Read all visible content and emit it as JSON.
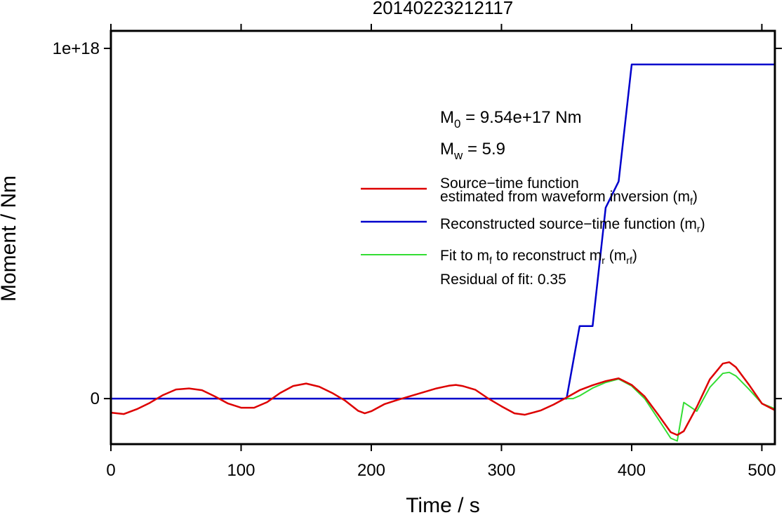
{
  "chart_data": {
    "type": "line",
    "title": "20140223212117",
    "xlabel": "Time / s",
    "ylabel": "Moment / Nm",
    "xlim": [
      0,
      510
    ],
    "ylim": [
      -1.3e+17,
      1.05e+18
    ],
    "x_ticks": [
      0,
      100,
      200,
      300,
      400,
      500
    ],
    "x_tick_labels": [
      "0",
      "100",
      "200",
      "300",
      "400",
      "500"
    ],
    "y_ticks": [
      0,
      1e+18
    ],
    "y_tick_labels": [
      "0",
      "1e+18"
    ],
    "grid": false,
    "legend_position": "right",
    "annotations": {
      "m0": {
        "main": "M",
        "sub": "0",
        "rest": " = 9.54e+17 Nm"
      },
      "mw": {
        "main": "M",
        "sub": "w",
        "rest": " = 5.9"
      },
      "residual": "Residual of fit: 0.35"
    },
    "series": [
      {
        "color": "#dd0000",
        "legend": {
          "line1": "Source−time function",
          "line2": "estimated from waveform inversion (m",
          "sub": "f",
          "close": ")"
        },
        "x": [
          0,
          10,
          20,
          30,
          40,
          50,
          60,
          70,
          80,
          90,
          100,
          110,
          120,
          130,
          140,
          150,
          160,
          170,
          180,
          190,
          195,
          200,
          210,
          220,
          230,
          240,
          250,
          260,
          265,
          270,
          280,
          290,
          300,
          310,
          318,
          330,
          340,
          350,
          360,
          370,
          380,
          390,
          400,
          410,
          420,
          430,
          435,
          440,
          450,
          460,
          470,
          475,
          480,
          490,
          500,
          510
        ],
        "values": [
          -4e+16,
          -4.4e+16,
          -3e+16,
          -1.2e+16,
          1e+16,
          2.6e+16,
          2.9e+16,
          2.4e+16,
          6000000000000000.0,
          -1.4e+16,
          -2.6e+16,
          -2.6e+16,
          -1e+16,
          1.6e+16,
          3.6e+16,
          4.3e+16,
          3.4e+16,
          1.6e+16,
          -6000000000000000.0,
          -3.5e+16,
          -4.2e+16,
          -3.6e+16,
          -1.6e+16,
          -4000000000000000.0,
          7000000000000000.0,
          1.8e+16,
          2.9e+16,
          3.7e+16,
          3.9e+16,
          3.6e+16,
          2.5e+16,
          0,
          -2.2e+16,
          -4.2e+16,
          -4.6e+16,
          -3.4e+16,
          -1.7e+16,
          3000000000000000.0,
          2.4e+16,
          3.8e+16,
          5e+16,
          5.8e+16,
          3.9e+16,
          6000000000000000.0,
          -4.4e+16,
          -9.6e+16,
          -1.04e+17,
          -9.3e+16,
          -2.4e+16,
          5.5e+16,
          1e+17,
          1.04e+17,
          9e+16,
          4e+16,
          -1.4e+16,
          -3.3e+16
        ]
      },
      {
        "color": "#0000cc",
        "legend": {
          "line1": "Reconstructed source−time function (m",
          "sub": "r",
          "close": ")"
        },
        "x": [
          0,
          350,
          360,
          370,
          380,
          390,
          400,
          510
        ],
        "values": [
          0,
          0,
          2.07e+17,
          2.07e+17,
          5.45e+17,
          6.2e+17,
          9.54e+17,
          9.54e+17
        ]
      },
      {
        "color": "#33dd33",
        "legend": {
          "line1": "Fit to m",
          "sub1": "f",
          "mid": " to reconstruct m",
          "sub2": "r",
          "mid2": " (m",
          "sub3": "rf",
          "close": ")"
        },
        "x": [
          350,
          355,
          360,
          370,
          380,
          390,
          400,
          410,
          420,
          430,
          435,
          440,
          450,
          460,
          470,
          475,
          480,
          490,
          500,
          510
        ],
        "values": [
          0,
          0,
          8000000000000000.0,
          3e+16,
          4.6e+16,
          5.6e+16,
          3.6e+16,
          0,
          -5.6e+16,
          -1.13e+17,
          -1.21e+17,
          -1.1e+16,
          -3.6e+16,
          3.2e+16,
          7.2e+16,
          7.5e+16,
          6.5e+16,
          2.7e+16,
          -1.4e+16,
          -2.9e+16
        ]
      }
    ]
  }
}
